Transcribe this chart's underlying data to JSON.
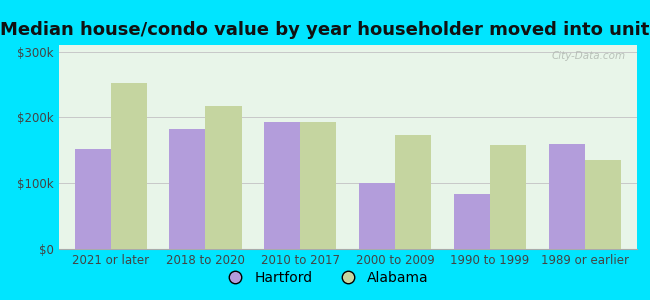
{
  "title": "Median house/condo value by year householder moved into unit",
  "categories": [
    "2021 or later",
    "2018 to 2020",
    "2010 to 2017",
    "2000 to 2009",
    "1990 to 1999",
    "1989 or earlier"
  ],
  "hartford_values": [
    152000,
    183000,
    193000,
    101000,
    83000,
    160000
  ],
  "alabama_values": [
    253000,
    218000,
    193000,
    173000,
    158000,
    135000
  ],
  "hartford_color": "#b39ddb",
  "alabama_color": "#c5d5a0",
  "background_outer": "#00e5ff",
  "background_inner": "#e8f5e9",
  "ylabel_ticks": [
    "$0",
    "$100k",
    "$200k",
    "$300k"
  ],
  "ytick_values": [
    0,
    100000,
    200000,
    300000
  ],
  "ylim": [
    0,
    310000
  ],
  "grid_color": "#c8c8c8",
  "title_fontsize": 13,
  "axis_label_fontsize": 8.5,
  "legend_labels": [
    "Hartford",
    "Alabama"
  ],
  "watermark": "City-Data.com",
  "bar_width": 0.38
}
